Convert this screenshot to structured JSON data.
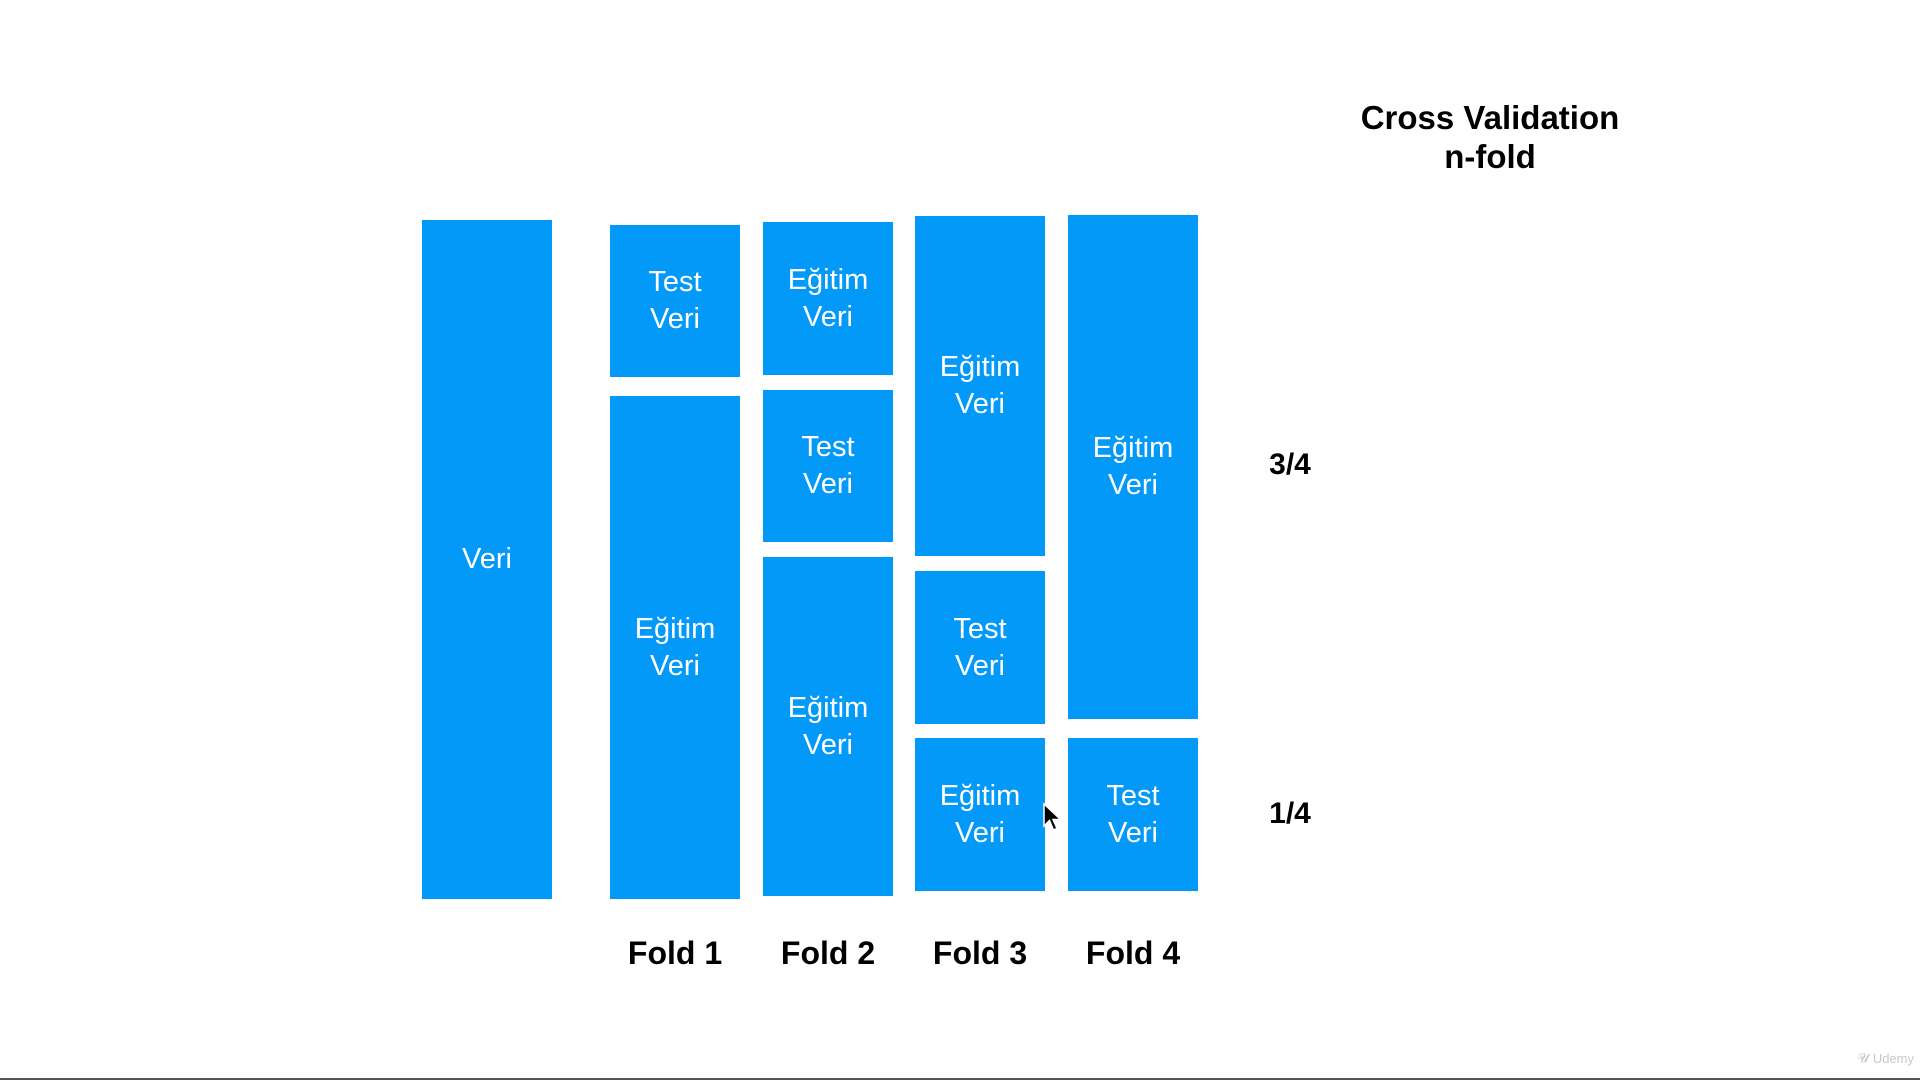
{
  "title": {
    "line1": "Cross Validation",
    "line2": "n-fold"
  },
  "data_block": {
    "label": "Veri"
  },
  "folds": [
    {
      "label": "Fold 1",
      "blocks": [
        {
          "line1": "Test",
          "line2": "Veri"
        },
        {
          "line1": "Eğitim",
          "line2": "Veri"
        }
      ]
    },
    {
      "label": "Fold 2",
      "blocks": [
        {
          "line1": "Eğitim",
          "line2": "Veri"
        },
        {
          "line1": "Test",
          "line2": "Veri"
        },
        {
          "line1": "Eğitim",
          "line2": "Veri"
        }
      ]
    },
    {
      "label": "Fold 3",
      "blocks": [
        {
          "line1": "Eğitim",
          "line2": "Veri"
        },
        {
          "line1": "Test",
          "line2": "Veri"
        },
        {
          "line1": "Eğitim",
          "line2": "Veri"
        }
      ]
    },
    {
      "label": "Fold 4",
      "blocks": [
        {
          "line1": "Eğitim",
          "line2": "Veri"
        },
        {
          "line1": "Test",
          "line2": "Veri"
        }
      ]
    }
  ],
  "ratios": {
    "upper": "3/4",
    "lower": "1/4"
  },
  "watermark": "Udemy",
  "colors": {
    "block": "#0299f9",
    "text": "#ffffff"
  }
}
